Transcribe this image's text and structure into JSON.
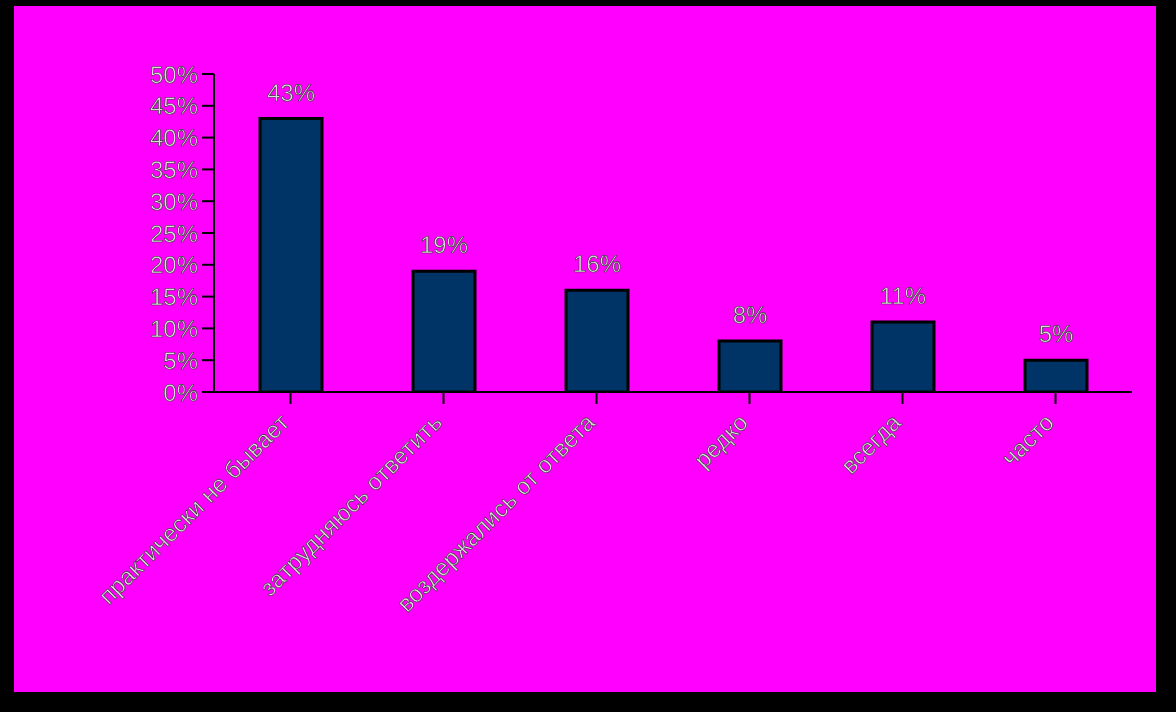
{
  "chart_data": {
    "type": "bar",
    "categories": [
      "практически не бывает",
      "затрудняюсь ответить",
      "воздержались от ответа",
      "редко",
      "всегда",
      "часто"
    ],
    "values": [
      43,
      19,
      16,
      8,
      11,
      5
    ],
    "value_labels": [
      "43%",
      "19%",
      "16%",
      "8%",
      "11%",
      "5%"
    ],
    "color": "#003366",
    "ylim": [
      0,
      50
    ],
    "yticks": [
      {
        "value": 0,
        "label": "0%"
      },
      {
        "value": 5,
        "label": "5%"
      },
      {
        "value": 10,
        "label": "10%"
      },
      {
        "value": 15,
        "label": "15%"
      },
      {
        "value": 20,
        "label": "20%"
      },
      {
        "value": 25,
        "label": "25%"
      },
      {
        "value": 30,
        "label": "30%"
      },
      {
        "value": 35,
        "label": "35%"
      },
      {
        "value": 40,
        "label": "40%"
      },
      {
        "value": 45,
        "label": "45%"
      },
      {
        "value": 50,
        "label": "50%"
      }
    ],
    "grid": false,
    "legend": false
  }
}
